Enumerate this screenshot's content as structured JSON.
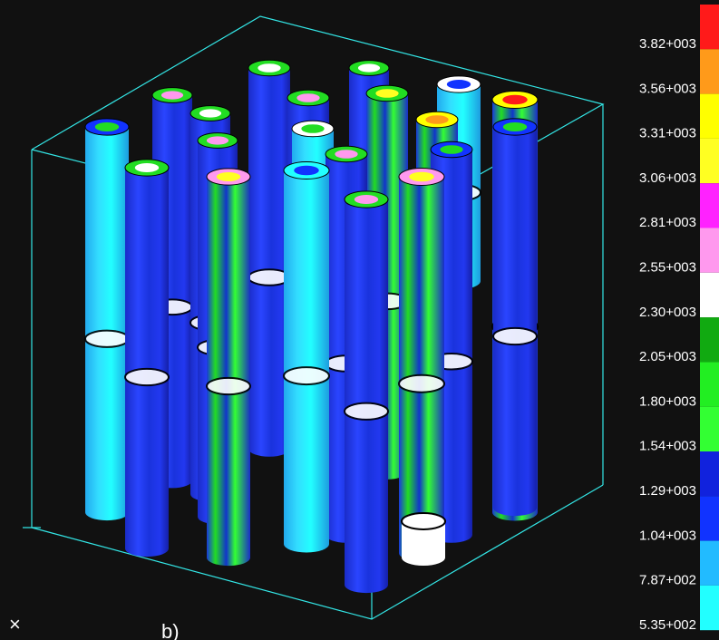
{
  "legend": {
    "labels": [
      "3.82+003",
      "3.56+003",
      "3.31+003",
      "3.06+003",
      "2.81+003",
      "2.55+003",
      "2.30+003",
      "2.05+003",
      "1.80+003",
      "1.54+003",
      "1.29+003",
      "1.04+003",
      "7.87+002",
      "5.35+002"
    ],
    "colors": [
      "#ff1a1a",
      "#ff9a1a",
      "#ffff00",
      "#ffff22",
      "#ff22ff",
      "#ff99ee",
      "#ffffff",
      "#11aa11",
      "#22ee22",
      "#33ff33",
      "#1122dd",
      "#1133ff",
      "#22bbff",
      "#22ffff"
    ]
  },
  "footer": {
    "mark": "×",
    "caption": "b)"
  }
}
